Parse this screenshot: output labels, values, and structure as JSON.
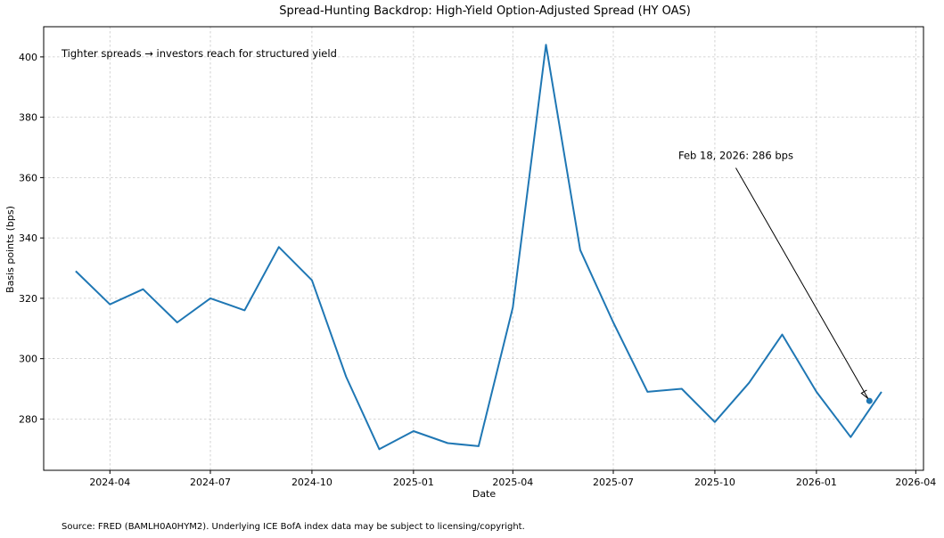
{
  "chart_data": {
    "type": "line",
    "title": "Spread-Hunting Backdrop: High-Yield Option-Adjusted Spread (HY OAS)",
    "xlabel": "Date",
    "ylabel": "Basis points (bps)",
    "note": "Tighter spreads → investors reach for structured yield",
    "source": "Source: FRED (BAMLH0A0HYM2). Underlying ICE BofA index data may be subject to licensing/copyright.",
    "grid": true,
    "line_color": "#1f77b4",
    "xlim": [
      "2024-02-01",
      "2026-04-08"
    ],
    "ylim": [
      263,
      410
    ],
    "yticks": [
      280,
      300,
      320,
      340,
      360,
      380,
      400
    ],
    "xticks": [
      {
        "date": "2024-04-01",
        "label": "2024-04"
      },
      {
        "date": "2024-07-01",
        "label": "2024-07"
      },
      {
        "date": "2024-10-01",
        "label": "2024-10"
      },
      {
        "date": "2025-01-01",
        "label": "2025-01"
      },
      {
        "date": "2025-04-01",
        "label": "2025-04"
      },
      {
        "date": "2025-07-01",
        "label": "2025-07"
      },
      {
        "date": "2025-10-01",
        "label": "2025-10"
      },
      {
        "date": "2026-01-01",
        "label": "2026-01"
      },
      {
        "date": "2026-04-01",
        "label": "2026-04"
      }
    ],
    "series": [
      {
        "x": [
          "2024-03-01",
          "2024-04-01",
          "2024-05-01",
          "2024-06-01",
          "2024-07-01",
          "2024-08-01",
          "2024-09-01",
          "2024-10-01",
          "2024-11-01",
          "2024-12-01",
          "2025-01-01",
          "2025-02-01",
          "2025-03-01",
          "2025-04-01",
          "2025-05-01",
          "2025-06-01",
          "2025-07-01",
          "2025-08-01",
          "2025-09-01",
          "2025-10-01",
          "2025-11-01",
          "2025-12-01",
          "2026-01-01",
          "2026-02-01",
          "2026-03-01"
        ],
        "y": [
          329,
          318,
          323,
          312,
          320,
          316,
          337,
          326,
          294,
          270,
          276,
          272,
          271,
          317,
          404,
          336,
          312,
          289,
          290,
          279,
          292,
          308,
          289,
          274,
          289
        ]
      }
    ],
    "highlight_point": {
      "x": "2026-02-18",
      "y": 286
    },
    "annotation": {
      "text": "Feb 18, 2026: 286 bps",
      "anchor_x": "2025-10-20",
      "anchor_y": 365
    }
  }
}
